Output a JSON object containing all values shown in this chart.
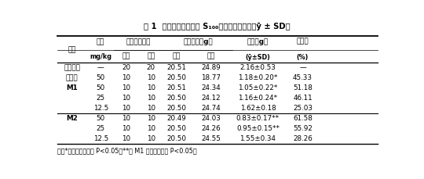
{
  "title": "表 1  药物对小鼠移植瘤 S₁₀₀的实验治疗作用（ȳ ± SD）",
  "rows": [
    [
      "阴性对照",
      "—",
      "20",
      "20",
      "20.51",
      "24.89",
      "2.16±0.53",
      "—"
    ],
    [
      "替加氟",
      "50",
      "10",
      "10",
      "20.50",
      "18.77",
      "1.18±0.20*",
      "45.33"
    ],
    [
      "M1",
      "50",
      "10",
      "10",
      "20.51",
      "24.34",
      "1.05±0.22*",
      "51.18"
    ],
    [
      "",
      "25",
      "10",
      "10",
      "20.50",
      "24.12",
      "1.16±0.24*",
      "46.11"
    ],
    [
      "",
      "12.5",
      "10",
      "10",
      "20.50",
      "24.74",
      "1.62±0.18",
      "25.03"
    ],
    [
      "M2",
      "50",
      "10",
      "10",
      "20.49",
      "24.03",
      "0.83±0.17**",
      "61.58"
    ],
    [
      "",
      "25",
      "10",
      "10",
      "20.50",
      "24.26",
      "0.95±0.15**",
      "55.92"
    ],
    [
      "",
      "12.5",
      "10",
      "10",
      "20.50",
      "24.55",
      "1.55±0.34",
      "28.26"
    ]
  ],
  "footnote": "注：*与阴性对照比较 P<0.05，**与 M1 同剂量组比较 P<0.05。"
}
